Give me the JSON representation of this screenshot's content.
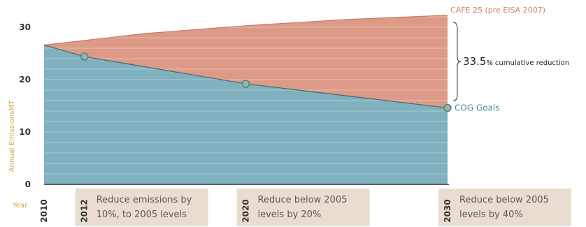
{
  "chart_data": {
    "type": "area",
    "x": [
      2010,
      2012,
      2020,
      2030
    ],
    "x_tick_labels": [
      "2010",
      "2012",
      "2020",
      "2030"
    ],
    "xlim": [
      2010,
      2030
    ],
    "ylim": [
      0,
      32
    ],
    "y_ticks": [
      0,
      10,
      20,
      30
    ],
    "y_tick_labels": [
      "0",
      "10",
      "20",
      "30"
    ],
    "xlabel": "Year",
    "ylabel": "Annual EmissionsMT",
    "grid": true,
    "series": [
      {
        "name": "CAFE 25 (pre EISA 2007)",
        "x": [
          2010,
          2015,
          2020,
          2025,
          2030
        ],
        "values": [
          26.6,
          28.8,
          30.3,
          31.5,
          32.3
        ],
        "color": "#dd9a87"
      },
      {
        "name": "COG Goals",
        "x": [
          2010,
          2012,
          2020,
          2030
        ],
        "values": [
          26.6,
          24.4,
          19.2,
          14.6
        ],
        "color": "#7fb1bf",
        "markers": [
          2012,
          2020,
          2030
        ]
      }
    ],
    "annotation": {
      "value": "33.5",
      "suffix": "%",
      "text": "cumulative reduction"
    },
    "notes": [
      {
        "x": 2012,
        "lines": [
          "Reduce emissions by",
          "10%, to 2005 levels"
        ]
      },
      {
        "x": 2020,
        "lines": [
          "Reduce  below 2005",
          "levels  by 20%"
        ]
      },
      {
        "x": 2030,
        "lines": [
          "Reduce  below 2005",
          "levels  by 40%"
        ]
      }
    ],
    "colors": {
      "cafe_area": "#dd9a87",
      "cog_area": "#7fb1bf",
      "note_box": "#e8ddd0",
      "axis_title": "#d9a04a"
    }
  }
}
